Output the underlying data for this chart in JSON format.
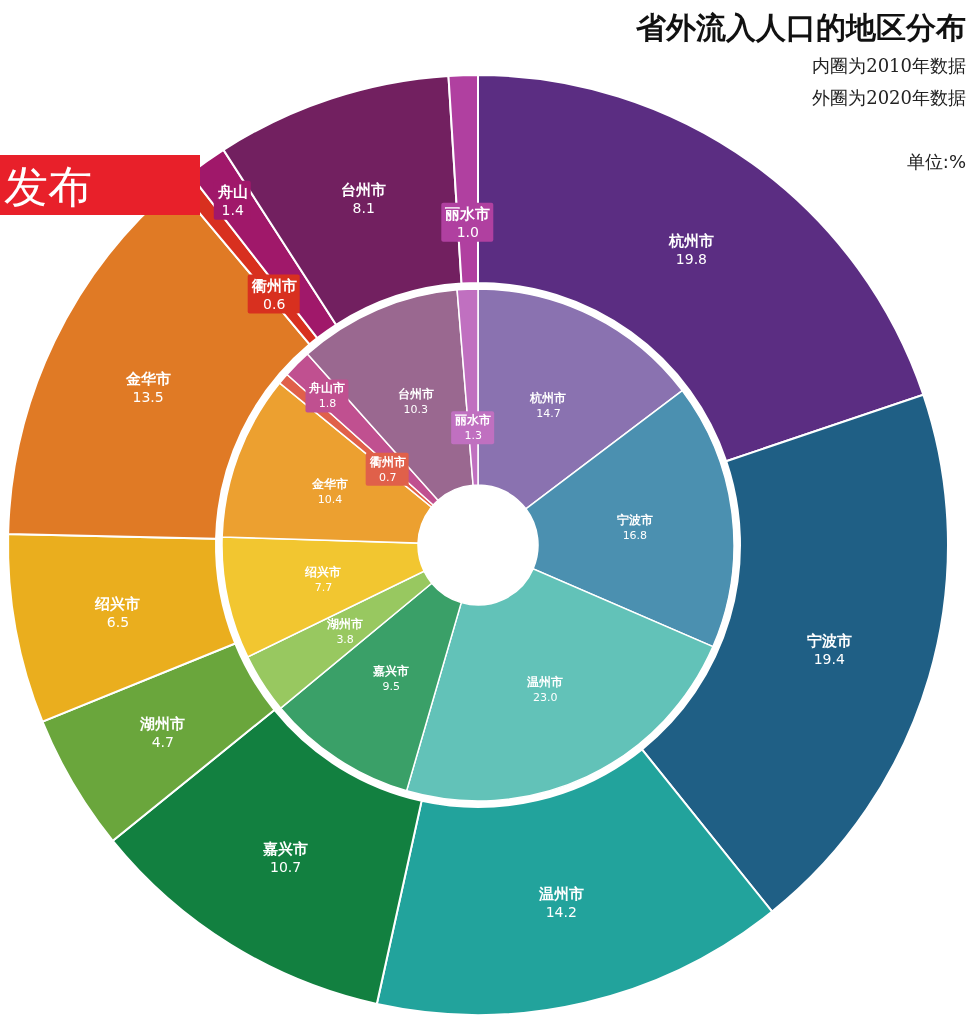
{
  "chart_data": [
    {
      "type": "donut",
      "title": "省外流入人口的地区分布",
      "annotations": [
        "内圈为2010年数据",
        "外圈为2020年数据",
        "单位:%",
        "发布"
      ],
      "categories": [
        "杭州市",
        "宁波市",
        "温州市",
        "嘉兴市",
        "湖州市",
        "绍兴市",
        "金华市",
        "衢州市",
        "舟山",
        "台州市",
        "丽水市"
      ],
      "values": [
        19.8,
        19.4,
        14.2,
        10.7,
        4.7,
        6.5,
        13.5,
        0.6,
        1.4,
        8.1,
        1.0
      ],
      "value_labels": [
        "19.8",
        "19.4",
        "14.2",
        "10.7",
        "4.7",
        "6.5",
        "13.5",
        "0.6",
        "1.4",
        "8.1",
        "1.0"
      ],
      "colors": [
        "#5b2d82",
        "#1f5f85",
        "#22a39c",
        "#128040",
        "#6aa63c",
        "#eaae1e",
        "#e07a25",
        "#d8301f",
        "#a0186a",
        "#722060",
        "#b040a0"
      ]
    },
    {
      "type": "donut",
      "categories": [
        "杭州市",
        "宁波市",
        "温州市",
        "嘉兴市",
        "湖州市",
        "绍兴市",
        "金华市",
        "衢州市",
        "舟山市",
        "台州市",
        "丽水市"
      ],
      "values": [
        14.7,
        16.8,
        23.0,
        9.5,
        3.8,
        7.7,
        10.4,
        0.7,
        1.8,
        10.3,
        1.3
      ],
      "value_labels": [
        "14.7",
        "16.8",
        "23.0",
        "9.5",
        "3.8",
        "7.7",
        "10.4",
        "0.7",
        "1.8",
        "10.3",
        "1.3"
      ],
      "colors": [
        "#8a72b0",
        "#4b90b0",
        "#62c2b8",
        "#3aa068",
        "#98c860",
        "#f2c630",
        "#eca030",
        "#e0604a",
        "#c05090",
        "#9a6890",
        "#c070c0"
      ]
    }
  ]
}
